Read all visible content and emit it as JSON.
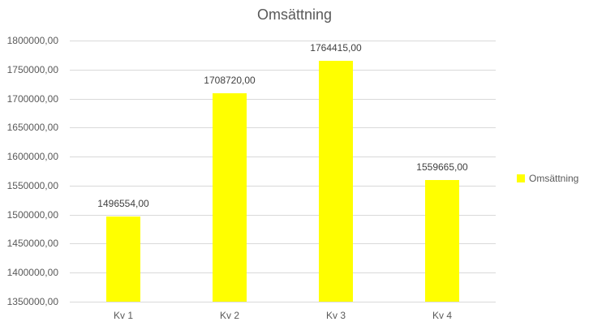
{
  "chart_data": {
    "type": "bar",
    "title": "Omsättning",
    "categories": [
      "Kv 1",
      "Kv 2",
      "Kv 3",
      "Kv 4"
    ],
    "series": [
      {
        "name": "Omsättning",
        "values": [
          1496554,
          1708720,
          1764415,
          1559665
        ],
        "data_labels": [
          "1496554,00",
          "1708720,00",
          "1764415,00",
          "1559665,00"
        ],
        "color": "#FFFF00"
      }
    ],
    "xlabel": "",
    "ylabel": "",
    "ylim": [
      1350000,
      1800000
    ],
    "ytick_step": 50000,
    "ytick_labels_top_to_bottom": [
      "1800000,00",
      "1750000,00",
      "1700000,00",
      "1650000,00",
      "1600000,00",
      "1550000,00",
      "1500000,00",
      "1450000,00",
      "1400000,00",
      "1350000,00"
    ],
    "grid": true,
    "legend": {
      "position": "right",
      "entries": [
        {
          "label": "Omsättning",
          "color": "#FFFF00"
        }
      ]
    },
    "colors": {
      "bar": "#FFFF00",
      "gridline": "#D9D9D9",
      "axis_line": "#D9D9D9",
      "title_text": "#595959",
      "axis_text": "#595959",
      "data_label_text": "#404040"
    }
  }
}
